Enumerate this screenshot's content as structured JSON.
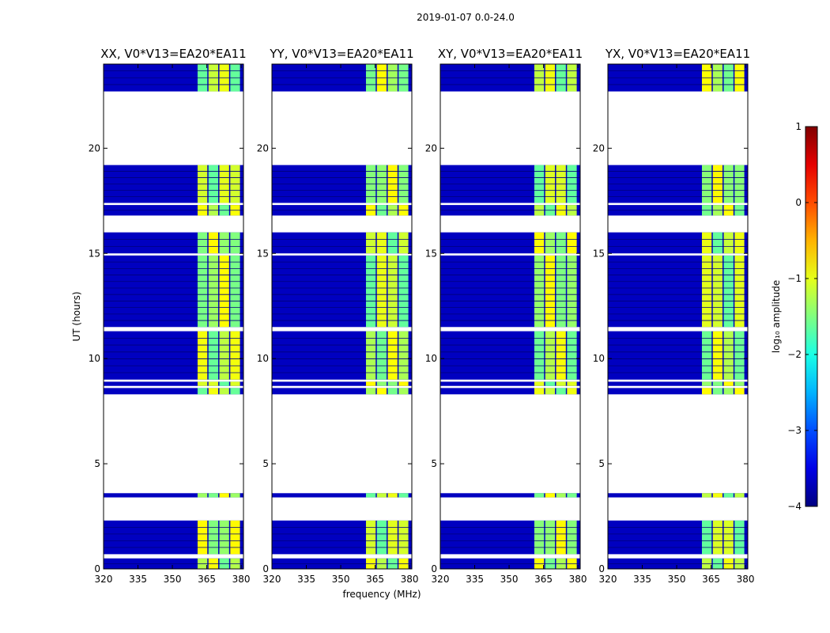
{
  "chart_data": {
    "type": "heatmap",
    "suptitle": "2019-01-07 0.0-24.0",
    "xlabel": "frequency (MHz)",
    "ylabel": "UT (hours)",
    "xlim": [
      320,
      381
    ],
    "ylim": [
      0,
      24
    ],
    "xticks": [
      320,
      335,
      350,
      365,
      380
    ],
    "yticks": [
      0,
      5,
      10,
      15,
      20
    ],
    "panels": [
      {
        "title": "XX, V0*V13=EA20*EA11",
        "pol": "XX"
      },
      {
        "title": "YY, V0*V13=EA20*EA11",
        "pol": "YY"
      },
      {
        "title": "XY, V0*V13=EA20*EA11",
        "pol": "XY"
      },
      {
        "title": "YX, V0*V13=EA20*EA11",
        "pol": "YX"
      }
    ],
    "colorbar": {
      "label": "log₁₀ amplitude",
      "vmin": -4,
      "vmax": 1,
      "ticks": [
        1,
        0,
        -1,
        -2,
        -3,
        -4
      ],
      "tick_labels": [
        "1",
        "0",
        "−1",
        "−2",
        "−3",
        "−4"
      ],
      "colormap": "jet"
    },
    "data_bands_hours": [
      [
        0,
        0.5
      ],
      [
        0.7,
        2.3
      ],
      [
        3.4,
        3.6
      ],
      [
        8.3,
        8.6
      ],
      [
        8.7,
        8.9
      ],
      [
        9.0,
        11.3
      ],
      [
        11.5,
        14.9
      ],
      [
        15.0,
        16.0
      ],
      [
        16.8,
        17.3
      ],
      [
        17.4,
        19.2
      ],
      [
        22.7,
        24.0
      ]
    ],
    "strong_signal_freq_mhz": [
      361,
      380
    ],
    "colors": {
      "background": "#ffffff",
      "axes": "#000000",
      "low": "#0000c0",
      "mid": "#70ff90",
      "high": "#ffd000"
    }
  }
}
